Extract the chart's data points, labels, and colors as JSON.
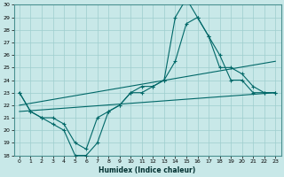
{
  "xlabel": "Humidex (Indice chaleur)",
  "bg_color": "#c8e8e8",
  "grid_color": "#9ecece",
  "line_color": "#006868",
  "xlim": [
    -0.5,
    23.5
  ],
  "ylim": [
    18,
    30
  ],
  "yticks": [
    18,
    19,
    20,
    21,
    22,
    23,
    24,
    25,
    26,
    27,
    28,
    29,
    30
  ],
  "xticks": [
    0,
    1,
    2,
    3,
    4,
    5,
    6,
    7,
    8,
    9,
    10,
    11,
    12,
    13,
    14,
    15,
    16,
    17,
    18,
    19,
    20,
    21,
    22,
    23
  ],
  "line1_x": [
    0,
    1,
    2,
    3,
    4,
    5,
    6,
    7,
    8,
    9,
    10,
    11,
    12,
    13,
    14,
    15,
    16,
    17,
    18,
    19,
    20,
    21,
    22,
    23
  ],
  "line1_y": [
    23,
    21.5,
    21,
    20.5,
    20,
    18,
    18,
    19,
    21.5,
    22,
    23,
    23.5,
    23.5,
    24,
    25.5,
    28.5,
    29,
    27.5,
    25,
    25,
    24.5,
    23.5,
    23,
    23
  ],
  "line2_x": [
    0,
    1,
    2,
    3,
    4,
    5,
    6,
    7,
    8,
    9,
    10,
    11,
    12,
    13,
    14,
    15,
    16,
    17,
    18,
    19,
    20,
    21,
    22,
    23
  ],
  "line2_y": [
    23,
    21.5,
    21,
    21,
    20.5,
    19,
    18.5,
    21,
    21.5,
    22,
    23,
    23,
    23.5,
    24,
    29,
    30.5,
    29,
    27.5,
    26,
    24,
    24,
    23,
    23,
    23
  ],
  "line3_x": [
    0,
    23
  ],
  "line3_y": [
    22.0,
    25.5
  ],
  "line4_x": [
    0,
    23
  ],
  "line4_y": [
    21.5,
    23.0
  ]
}
